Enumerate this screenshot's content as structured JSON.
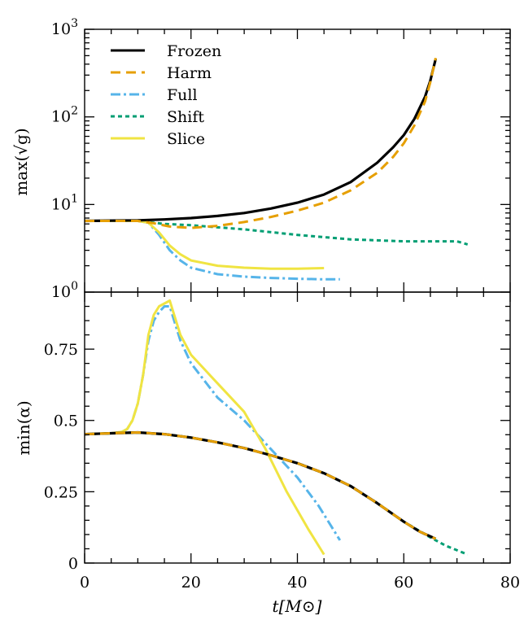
{
  "chart_data": [
    {
      "type": "line",
      "panel": "top",
      "ylabel": "max(√g)",
      "yscale": "log",
      "ylim": [
        1,
        1000
      ],
      "xlim": [
        0,
        80
      ],
      "y_ticks": [
        {
          "value": 1,
          "base": "10",
          "exp": "0"
        },
        {
          "value": 10,
          "base": "10",
          "exp": "1"
        },
        {
          "value": 100,
          "base": "10",
          "exp": "2"
        },
        {
          "value": 1000,
          "base": "10",
          "exp": "3"
        }
      ],
      "legend_position": "top-left",
      "series": [
        {
          "name": "Frozen",
          "color": "#000000",
          "style": "solid",
          "x": [
            0,
            10,
            15,
            20,
            25,
            30,
            35,
            40,
            45,
            50,
            55,
            58,
            60,
            62,
            64,
            65,
            66
          ],
          "y": [
            6.5,
            6.6,
            6.75,
            7.0,
            7.4,
            8.0,
            9.0,
            10.5,
            13.0,
            18.0,
            30.0,
            45.0,
            62.0,
            95.0,
            170.0,
            260.0,
            460.0
          ]
        },
        {
          "name": "Harm",
          "color": "#E69F00",
          "style": "dashed",
          "x": [
            0,
            10,
            13,
            16,
            20,
            25,
            30,
            35,
            40,
            45,
            50,
            55,
            58,
            60,
            62,
            64,
            65,
            66
          ],
          "y": [
            6.5,
            6.5,
            6.1,
            5.6,
            5.4,
            5.7,
            6.3,
            7.2,
            8.5,
            10.5,
            14.5,
            23.0,
            35.0,
            50.0,
            80.0,
            150.0,
            250.0,
            470.0
          ]
        },
        {
          "name": "Full",
          "color": "#56B4E9",
          "style": "dashdot",
          "x": [
            0,
            10,
            12,
            14,
            16,
            18,
            20,
            25,
            30,
            35,
            40,
            45,
            48
          ],
          "y": [
            6.5,
            6.5,
            6.2,
            4.5,
            3.0,
            2.3,
            1.9,
            1.6,
            1.5,
            1.45,
            1.42,
            1.4,
            1.4
          ]
        },
        {
          "name": "Shift",
          "color": "#009E73",
          "style": "dotted",
          "x": [
            0,
            10,
            15,
            20,
            30,
            40,
            50,
            60,
            70,
            72
          ],
          "y": [
            6.5,
            6.5,
            6.0,
            5.8,
            5.2,
            4.5,
            4.0,
            3.8,
            3.8,
            3.5
          ]
        },
        {
          "name": "Slice",
          "color": "#F0E442",
          "style": "solid",
          "x": [
            0,
            10,
            12,
            14,
            16,
            18,
            20,
            25,
            30,
            35,
            40,
            45
          ],
          "y": [
            6.5,
            6.5,
            6.2,
            4.8,
            3.4,
            2.7,
            2.3,
            2.0,
            1.9,
            1.85,
            1.85,
            1.88
          ]
        }
      ]
    },
    {
      "type": "line",
      "panel": "bottom",
      "ylabel": "min(α)",
      "xlabel": "t[M⊙]",
      "ylim": [
        0,
        0.95
      ],
      "xlim": [
        0,
        80
      ],
      "x_ticks": [
        0,
        20,
        40,
        60,
        80
      ],
      "y_ticks": [
        "0",
        "0.25",
        "0.5",
        "0.75"
      ],
      "series": [
        {
          "name": "Frozen",
          "color": "#000000",
          "style": "solid",
          "x": [
            0,
            5,
            10,
            15,
            20,
            25,
            30,
            35,
            40,
            45,
            50,
            55,
            60,
            63,
            66
          ],
          "y": [
            0.452,
            0.455,
            0.458,
            0.452,
            0.44,
            0.423,
            0.403,
            0.378,
            0.35,
            0.315,
            0.27,
            0.21,
            0.145,
            0.11,
            0.085
          ]
        },
        {
          "name": "Harm",
          "color": "#E69F00",
          "style": "dashed",
          "x": [
            0,
            5,
            10,
            15,
            20,
            25,
            30,
            35,
            40,
            45,
            50,
            55,
            60,
            63,
            66
          ],
          "y": [
            0.452,
            0.455,
            0.458,
            0.452,
            0.44,
            0.423,
            0.403,
            0.378,
            0.35,
            0.315,
            0.27,
            0.21,
            0.145,
            0.11,
            0.085
          ]
        },
        {
          "name": "Full",
          "color": "#56B4E9",
          "style": "dashdot",
          "x": [
            0,
            5,
            7,
            8,
            9,
            10,
            11,
            12,
            13,
            14,
            15,
            16,
            18,
            20,
            25,
            30,
            35,
            40,
            44,
            48
          ],
          "y": [
            0.452,
            0.455,
            0.46,
            0.47,
            0.5,
            0.56,
            0.66,
            0.78,
            0.85,
            0.88,
            0.9,
            0.9,
            0.78,
            0.7,
            0.58,
            0.5,
            0.4,
            0.3,
            0.2,
            0.08
          ]
        },
        {
          "name": "Shift",
          "color": "#009E73",
          "style": "dotted",
          "x": [
            0,
            5,
            10,
            15,
            20,
            25,
            30,
            35,
            40,
            45,
            50,
            55,
            60,
            65,
            68,
            72
          ],
          "y": [
            0.452,
            0.455,
            0.458,
            0.452,
            0.44,
            0.423,
            0.403,
            0.378,
            0.35,
            0.315,
            0.27,
            0.21,
            0.145,
            0.09,
            0.06,
            0.03
          ]
        },
        {
          "name": "Slice",
          "color": "#F0E442",
          "style": "solid",
          "x": [
            0,
            5,
            7,
            8,
            9,
            10,
            11,
            12,
            13,
            14,
            15,
            16,
            18,
            20,
            25,
            30,
            34,
            38,
            42,
            45
          ],
          "y": [
            0.452,
            0.455,
            0.46,
            0.47,
            0.5,
            0.56,
            0.66,
            0.8,
            0.87,
            0.9,
            0.91,
            0.92,
            0.8,
            0.73,
            0.63,
            0.53,
            0.4,
            0.25,
            0.12,
            0.03
          ]
        }
      ]
    }
  ]
}
